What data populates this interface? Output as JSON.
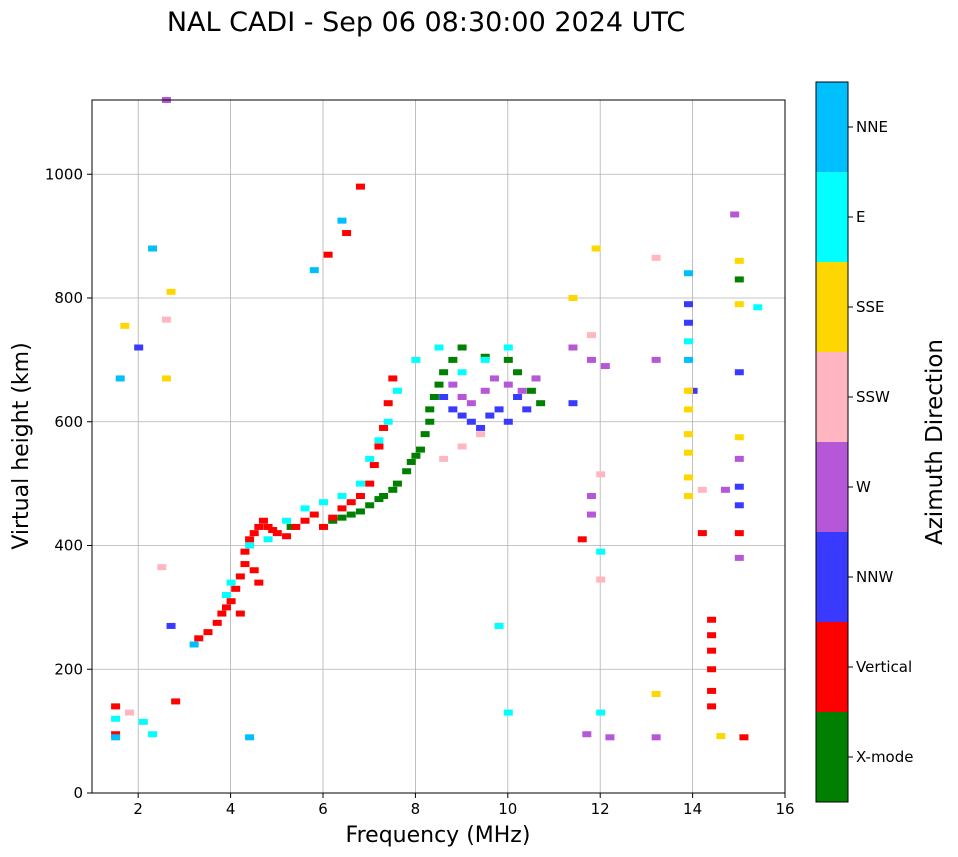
{
  "title": "NAL CADI - Sep 06 08:30:00 2024 UTC",
  "chart_data": {
    "type": "scatter",
    "title": "NAL CADI - Sep 06 08:30:00 2024 UTC",
    "xlabel": "Frequency (MHz)",
    "ylabel": "Virtual height (km)",
    "xlim": [
      1,
      16
    ],
    "ylim": [
      0,
      1120
    ],
    "xticks": [
      "2",
      "4",
      "6",
      "8",
      "10",
      "12",
      "14",
      "16"
    ],
    "yticks": [
      "0",
      "200",
      "400",
      "600",
      "800",
      "1000"
    ],
    "grid": true,
    "colorbar": {
      "label": "Azimuth Direction",
      "categories": [
        {
          "name": "X-mode",
          "color": "#008000"
        },
        {
          "name": "Vertical",
          "color": "#ff0000"
        },
        {
          "name": "NNW",
          "color": "#3a3aff"
        },
        {
          "name": "W",
          "color": "#b557d6"
        },
        {
          "name": "SSW",
          "color": "#ffb6c1"
        },
        {
          "name": "SSE",
          "color": "#ffd700"
        },
        {
          "name": "E",
          "color": "#00ffff"
        },
        {
          "name": "NNE",
          "color": "#00bfff"
        }
      ]
    },
    "series": [
      {
        "name": "X-mode",
        "points": [
          [
            6.6,
            450
          ],
          [
            6.8,
            455
          ],
          [
            7.0,
            465
          ],
          [
            7.2,
            475
          ],
          [
            7.3,
            480
          ],
          [
            7.5,
            490
          ],
          [
            7.6,
            500
          ],
          [
            7.8,
            520
          ],
          [
            7.9,
            535
          ],
          [
            8.0,
            545
          ],
          [
            8.1,
            555
          ],
          [
            8.2,
            580
          ],
          [
            8.3,
            600
          ],
          [
            8.3,
            620
          ],
          [
            8.4,
            640
          ],
          [
            8.5,
            660
          ],
          [
            8.6,
            680
          ],
          [
            8.8,
            700
          ],
          [
            9.0,
            720
          ],
          [
            9.5,
            705
          ],
          [
            10.0,
            700
          ],
          [
            10.2,
            680
          ],
          [
            10.5,
            650
          ],
          [
            10.7,
            630
          ],
          [
            6.2,
            440
          ],
          [
            6.4,
            445
          ],
          [
            15.0,
            830
          ],
          [
            5.3,
            430
          ]
        ]
      },
      {
        "name": "Vertical",
        "points": [
          [
            1.5,
            95
          ],
          [
            1.5,
            140
          ],
          [
            3.3,
            250
          ],
          [
            3.5,
            260
          ],
          [
            3.7,
            275
          ],
          [
            3.8,
            290
          ],
          [
            3.9,
            300
          ],
          [
            4.0,
            310
          ],
          [
            4.1,
            330
          ],
          [
            4.2,
            350
          ],
          [
            4.3,
            370
          ],
          [
            4.3,
            390
          ],
          [
            4.4,
            410
          ],
          [
            4.5,
            420
          ],
          [
            4.6,
            430
          ],
          [
            4.7,
            440
          ],
          [
            4.8,
            430
          ],
          [
            4.9,
            425
          ],
          [
            5.0,
            420
          ],
          [
            5.2,
            415
          ],
          [
            5.4,
            430
          ],
          [
            5.6,
            440
          ],
          [
            5.8,
            450
          ],
          [
            6.0,
            430
          ],
          [
            6.2,
            445
          ],
          [
            6.4,
            460
          ],
          [
            6.6,
            470
          ],
          [
            6.8,
            480
          ],
          [
            7.0,
            500
          ],
          [
            7.1,
            530
          ],
          [
            7.2,
            560
          ],
          [
            7.3,
            590
          ],
          [
            7.4,
            630
          ],
          [
            7.5,
            670
          ],
          [
            6.1,
            870
          ],
          [
            6.8,
            980
          ],
          [
            6.5,
            905
          ],
          [
            4.5,
            360
          ],
          [
            4.6,
            340
          ],
          [
            4.2,
            290
          ],
          [
            14.4,
            140
          ],
          [
            14.4,
            165
          ],
          [
            14.4,
            200
          ],
          [
            14.4,
            230
          ],
          [
            14.4,
            255
          ],
          [
            14.4,
            280
          ],
          [
            14.2,
            420
          ],
          [
            15.1,
            90
          ],
          [
            15.0,
            420
          ],
          [
            2.8,
            148
          ],
          [
            11.6,
            410
          ]
        ]
      },
      {
        "name": "NNW",
        "points": [
          [
            8.6,
            640
          ],
          [
            8.8,
            620
          ],
          [
            9.0,
            610
          ],
          [
            9.2,
            600
          ],
          [
            9.4,
            590
          ],
          [
            9.6,
            610
          ],
          [
            9.8,
            620
          ],
          [
            10.0,
            600
          ],
          [
            10.2,
            640
          ],
          [
            10.4,
            620
          ],
          [
            13.9,
            790
          ],
          [
            13.9,
            760
          ],
          [
            14.0,
            650
          ],
          [
            15.0,
            680
          ],
          [
            15.0,
            495
          ],
          [
            15.0,
            465
          ],
          [
            11.4,
            630
          ],
          [
            2.0,
            720
          ],
          [
            2.7,
            270
          ]
        ]
      },
      {
        "name": "W",
        "points": [
          [
            8.8,
            660
          ],
          [
            9.0,
            640
          ],
          [
            9.2,
            630
          ],
          [
            9.5,
            650
          ],
          [
            9.7,
            670
          ],
          [
            10.0,
            660
          ],
          [
            10.3,
            650
          ],
          [
            10.6,
            670
          ],
          [
            11.4,
            720
          ],
          [
            11.8,
            700
          ],
          [
            11.8,
            480
          ],
          [
            11.8,
            450
          ],
          [
            12.1,
            690
          ],
          [
            14.7,
            490
          ],
          [
            15.0,
            540
          ],
          [
            15.0,
            380
          ],
          [
            13.2,
            700
          ],
          [
            14.9,
            935
          ],
          [
            11.7,
            95
          ],
          [
            12.2,
            90
          ],
          [
            13.2,
            90
          ],
          [
            2.6,
            1120
          ]
        ]
      },
      {
        "name": "SSW",
        "points": [
          [
            8.6,
            540
          ],
          [
            9.0,
            560
          ],
          [
            9.4,
            580
          ],
          [
            11.8,
            740
          ],
          [
            12.0,
            515
          ],
          [
            12.0,
            345
          ],
          [
            13.2,
            865
          ],
          [
            14.2,
            490
          ],
          [
            1.8,
            130
          ],
          [
            2.5,
            365
          ],
          [
            2.6,
            765
          ]
        ]
      },
      {
        "name": "SSE",
        "points": [
          [
            13.9,
            480
          ],
          [
            13.9,
            510
          ],
          [
            13.9,
            550
          ],
          [
            13.9,
            580
          ],
          [
            13.9,
            620
          ],
          [
            13.9,
            650
          ],
          [
            15.0,
            790
          ],
          [
            15.0,
            860
          ],
          [
            15.0,
            575
          ],
          [
            11.9,
            880
          ],
          [
            11.4,
            800
          ],
          [
            13.2,
            160
          ],
          [
            14.6,
            92
          ],
          [
            2.6,
            670
          ],
          [
            1.7,
            755
          ],
          [
            2.7,
            810
          ]
        ]
      },
      {
        "name": "E",
        "points": [
          [
            3.9,
            320
          ],
          [
            4.0,
            340
          ],
          [
            4.4,
            400
          ],
          [
            4.8,
            410
          ],
          [
            5.2,
            440
          ],
          [
            5.6,
            460
          ],
          [
            6.0,
            470
          ],
          [
            6.4,
            480
          ],
          [
            6.8,
            500
          ],
          [
            7.0,
            540
          ],
          [
            7.2,
            570
          ],
          [
            7.4,
            600
          ],
          [
            7.6,
            650
          ],
          [
            8.0,
            700
          ],
          [
            8.5,
            720
          ],
          [
            9.0,
            680
          ],
          [
            9.5,
            700
          ],
          [
            10.0,
            720
          ],
          [
            15.4,
            785
          ],
          [
            13.9,
            730
          ],
          [
            10.0,
            130
          ],
          [
            9.8,
            270
          ],
          [
            1.5,
            120
          ],
          [
            2.1,
            115
          ],
          [
            2.3,
            95
          ],
          [
            12.0,
            130
          ],
          [
            12.0,
            390
          ]
        ]
      },
      {
        "name": "NNE",
        "points": [
          [
            13.9,
            840
          ],
          [
            13.9,
            700
          ],
          [
            5.8,
            845
          ],
          [
            6.4,
            925
          ],
          [
            2.3,
            880
          ],
          [
            1.5,
            90
          ],
          [
            4.4,
            90
          ],
          [
            3.2,
            240
          ],
          [
            1.6,
            670
          ]
        ]
      }
    ]
  }
}
